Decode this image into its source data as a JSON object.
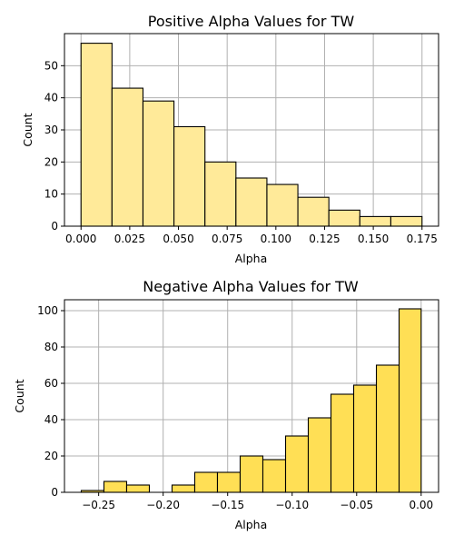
{
  "chart_data": [
    {
      "type": "bar",
      "title": "Positive Alpha Values for TW",
      "xlabel": "Alpha",
      "ylabel": "Count",
      "color": "#FFEA99",
      "grid": true,
      "xlim": [
        -0.0085,
        0.1835
      ],
      "ylim": [
        0,
        60
      ],
      "xticks": [
        0.0,
        0.025,
        0.05,
        0.075,
        0.1,
        0.125,
        0.15,
        0.175
      ],
      "xtick_labels": [
        "0.000",
        "0.025",
        "0.050",
        "0.075",
        "0.100",
        "0.125",
        "0.150",
        "0.175"
      ],
      "yticks": [
        0,
        10,
        20,
        30,
        40,
        50
      ],
      "yticks_labels": [
        "0",
        "10",
        "20",
        "30",
        "40",
        "50"
      ],
      "bins": [
        {
          "x0": 0.0,
          "x1": 0.0159,
          "count": 57
        },
        {
          "x0": 0.0159,
          "x1": 0.0318,
          "count": 43
        },
        {
          "x0": 0.0318,
          "x1": 0.0477,
          "count": 39
        },
        {
          "x0": 0.0477,
          "x1": 0.0636,
          "count": 31
        },
        {
          "x0": 0.0636,
          "x1": 0.0795,
          "count": 20
        },
        {
          "x0": 0.0795,
          "x1": 0.0954,
          "count": 15
        },
        {
          "x0": 0.0954,
          "x1": 0.1113,
          "count": 13
        },
        {
          "x0": 0.1113,
          "x1": 0.1272,
          "count": 9
        },
        {
          "x0": 0.1272,
          "x1": 0.1431,
          "count": 5
        },
        {
          "x0": 0.1431,
          "x1": 0.159,
          "count": 3
        },
        {
          "x0": 0.159,
          "x1": 0.175,
          "count": 3
        }
      ]
    },
    {
      "type": "bar",
      "title": "Negative Alpha Values for TW",
      "xlabel": "Alpha",
      "ylabel": "Count",
      "color": "#FFDF55",
      "grid": true,
      "xlim": [
        -0.2765,
        0.0135
      ],
      "ylim": [
        0,
        106
      ],
      "xticks": [
        -0.25,
        -0.2,
        -0.15,
        -0.1,
        -0.05,
        0.0
      ],
      "xtick_labels": [
        "−0.25",
        "−0.20",
        "−0.15",
        "−0.10",
        "−0.05",
        "0.00"
      ],
      "yticks": [
        0,
        20,
        40,
        60,
        80,
        100
      ],
      "yticks_labels": [
        "0",
        "20",
        "40",
        "60",
        "80",
        "100"
      ],
      "bins": [
        {
          "x0": -0.2635,
          "x1": -0.2459,
          "count": 1
        },
        {
          "x0": -0.2459,
          "x1": -0.2283,
          "count": 6
        },
        {
          "x0": -0.2283,
          "x1": -0.2107,
          "count": 4
        },
        {
          "x0": -0.2107,
          "x1": -0.1931,
          "count": 0
        },
        {
          "x0": -0.1931,
          "x1": -0.1755,
          "count": 4
        },
        {
          "x0": -0.1755,
          "x1": -0.1579,
          "count": 11
        },
        {
          "x0": -0.1579,
          "x1": -0.1403,
          "count": 11
        },
        {
          "x0": -0.1403,
          "x1": -0.1227,
          "count": 20
        },
        {
          "x0": -0.1227,
          "x1": -0.1051,
          "count": 18
        },
        {
          "x0": -0.1051,
          "x1": -0.0875,
          "count": 31
        },
        {
          "x0": -0.0875,
          "x1": -0.0699,
          "count": 41
        },
        {
          "x0": -0.0699,
          "x1": -0.0523,
          "count": 54
        },
        {
          "x0": -0.0523,
          "x1": -0.0347,
          "count": 59
        },
        {
          "x0": -0.0347,
          "x1": -0.0171,
          "count": 70
        },
        {
          "x0": -0.0171,
          "x1": 0.0,
          "count": 101
        }
      ]
    }
  ]
}
